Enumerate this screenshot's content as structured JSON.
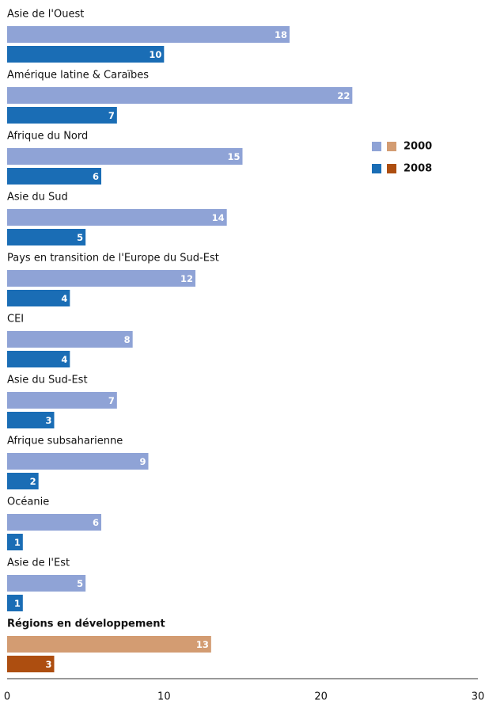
{
  "chart_data": {
    "type": "hbar",
    "categories": [
      "Asie de l'Ouest",
      "Amérique latine & Caraïbes",
      "Afrique du Nord",
      "Asie du Sud",
      "Pays en transition de l'Europe du Sud-Est",
      "CEI",
      "Asie du Sud-Est",
      "Afrique subsaharienne",
      "Océanie",
      "Asie de l'Est",
      "Régions en développement"
    ],
    "highlighted": [
      false,
      false,
      false,
      false,
      false,
      false,
      false,
      false,
      false,
      false,
      true
    ],
    "series": [
      {
        "name": "2000",
        "color": "#8fa3d6",
        "highlight_color": "#d39c72",
        "values": [
          18,
          22,
          15,
          14,
          12,
          8,
          7,
          9,
          6,
          5,
          13
        ]
      },
      {
        "name": "2008",
        "color": "#1a6db5",
        "highlight_color": "#ad4e10",
        "values": [
          10,
          7,
          6,
          5,
          4,
          4,
          3,
          2,
          1,
          1,
          3
        ]
      }
    ],
    "xlim": [
      0,
      30
    ],
    "xticks": [
      0,
      10,
      20,
      30
    ],
    "grid": false,
    "legend": "right"
  }
}
